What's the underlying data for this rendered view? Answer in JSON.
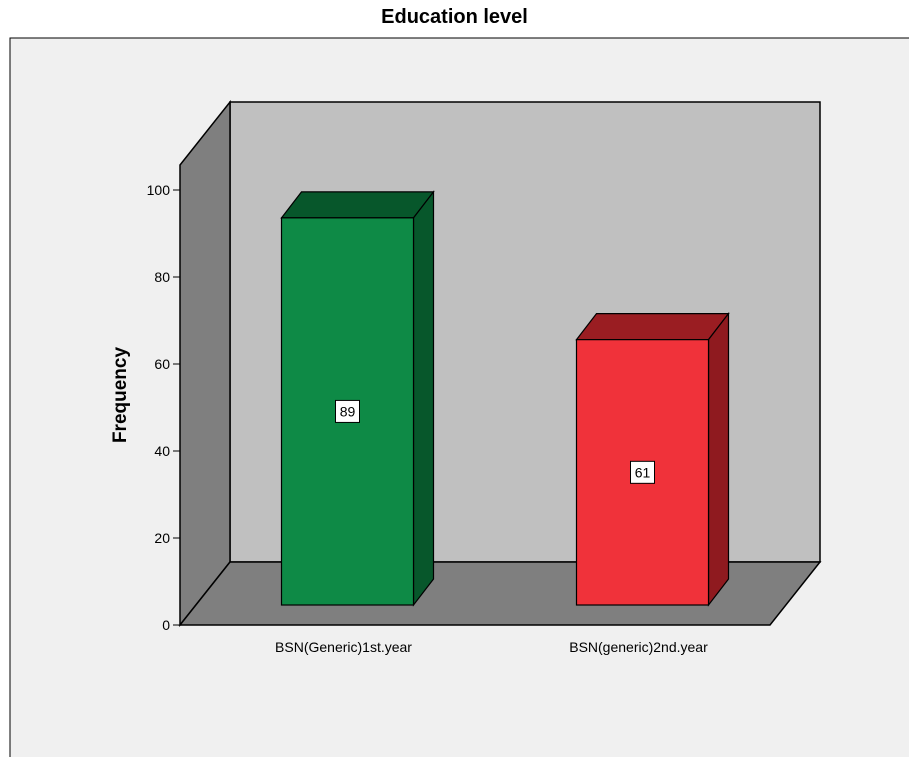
{
  "chart_data": {
    "type": "bar",
    "title": "Education level",
    "xlabel": "",
    "ylabel": "Frequency",
    "categories": [
      "BSN(Generic)1st.year",
      "BSN(generic)2nd.year"
    ],
    "values": [
      89,
      61
    ],
    "data_labels": [
      "89",
      "61"
    ],
    "ylim": [
      0,
      100
    ],
    "yticks": [
      0,
      20,
      40,
      60,
      80,
      100
    ],
    "ytick_labels": [
      "0",
      "20",
      "40",
      "60",
      "80",
      "100"
    ],
    "style": "3d",
    "legend": "none",
    "grid": false,
    "colors": {
      "bars": [
        "#0e8a46",
        "#f0323a"
      ],
      "bar_tops": [
        "#07572b",
        "#9a1d22"
      ],
      "bar_sides": [
        "#07572b",
        "#8f1a1f"
      ],
      "back_wall": "#c0c0c0",
      "side_wall": "#7f7f7f",
      "floor": "#7f7f7f",
      "plot_area": "#f0f0f0",
      "outline": "#000000"
    }
  }
}
